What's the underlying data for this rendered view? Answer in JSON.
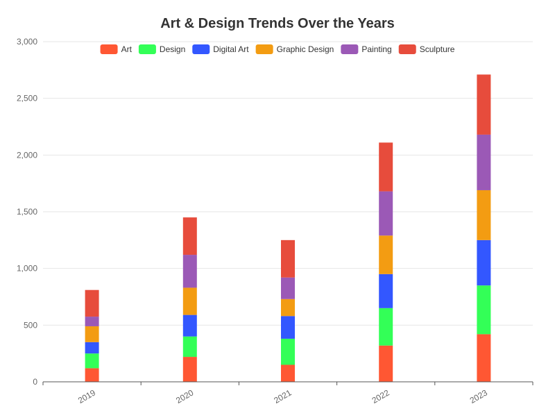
{
  "chart_data": {
    "type": "bar",
    "stacked": true,
    "title": "Art & Design Trends Over the Years",
    "xlabel": "",
    "ylabel": "",
    "categories": [
      "2019",
      "2020",
      "2021",
      "2022",
      "2023"
    ],
    "ylim": [
      0,
      3000
    ],
    "yticks": [
      0,
      500,
      1000,
      1500,
      2000,
      2500,
      3000
    ],
    "ytick_labels": [
      "0",
      "500",
      "1,000",
      "1,500",
      "2,000",
      "2,500",
      "3,000"
    ],
    "grid": true,
    "legend_position": "top",
    "series": [
      {
        "name": "Art",
        "color": "#ff5733",
        "values": [
          120,
          220,
          150,
          320,
          420
        ]
      },
      {
        "name": "Design",
        "color": "#33ff57",
        "values": [
          130,
          180,
          230,
          330,
          430
        ]
      },
      {
        "name": "Digital Art",
        "color": "#3357ff",
        "values": [
          100,
          190,
          200,
          300,
          400
        ]
      },
      {
        "name": "Graphic Design",
        "color": "#f39c12",
        "values": [
          140,
          240,
          150,
          340,
          440
        ]
      },
      {
        "name": "Painting",
        "color": "#9b59b6",
        "values": [
          85,
          290,
          190,
          390,
          490
        ]
      },
      {
        "name": "Sculpture",
        "color": "#e74c3c",
        "values": [
          235,
          330,
          330,
          430,
          530
        ]
      }
    ]
  }
}
